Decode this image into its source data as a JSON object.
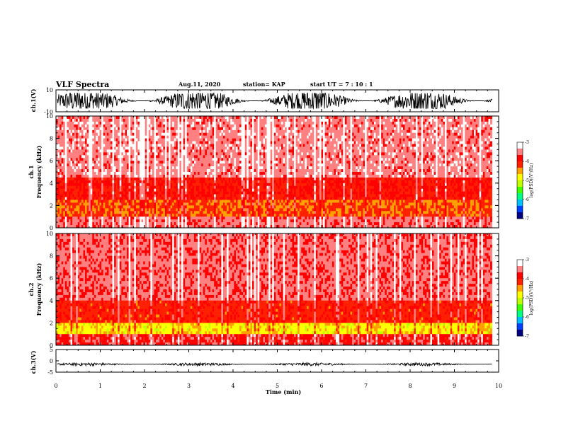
{
  "header": {
    "title": "VLF Spectra",
    "date": "Aug.11, 2020",
    "station": "station= KAP",
    "start": "start UT = 7 : 10 : 1"
  },
  "chart_data": [
    {
      "type": "line",
      "name": "ch1-waveform",
      "ylabel": "ch.1(V)",
      "ylim": [
        -10,
        10
      ],
      "yticklabels": [
        "10",
        "-10"
      ],
      "xlim": [
        0,
        10
      ],
      "color": "#000000",
      "description_level": {
        "center": 0,
        "amplitude_range": [
          -7,
          7
        ]
      }
    },
    {
      "type": "heatmap",
      "name": "ch1-spectrogram",
      "ylabel": "ch.1\nFrequency (kHz)",
      "ylabel_lines": [
        "ch.1",
        "Frequency (kHz)"
      ],
      "ylim": [
        0,
        10
      ],
      "yticks": [
        0,
        2,
        4,
        6,
        8,
        10
      ],
      "xlim": [
        0,
        9.85
      ],
      "colorbar": {
        "label": "log(PSD)(V²/Hz)",
        "range": [
          -7,
          -3
        ],
        "ticks": [
          -3,
          -4,
          -5,
          -6,
          -7
        ]
      },
      "bands": [
        {
          "f_range": [
            0,
            1.0
          ],
          "level": -3.6
        },
        {
          "f_range": [
            1.0,
            2.5
          ],
          "level": -4.3
        },
        {
          "f_range": [
            2.5,
            4.5
          ],
          "level": -4.0
        },
        {
          "f_range": [
            4.5,
            10
          ],
          "level": -3.5
        }
      ]
    },
    {
      "type": "heatmap",
      "name": "ch2-spectrogram",
      "ylabel": "ch.2\nFrequency (kHz)",
      "ylabel_lines": [
        "ch.2",
        "Frequency (kHz)"
      ],
      "ylim": [
        0,
        10
      ],
      "yticks": [
        0,
        2,
        4,
        6,
        8,
        10
      ],
      "xlim": [
        0,
        9.85
      ],
      "colorbar": {
        "label": "log(PSD)(V²/Hz)",
        "range": [
          -7,
          -3
        ],
        "ticks": [
          -3,
          -4,
          -5,
          -6,
          -7
        ]
      },
      "bands": [
        {
          "f_range": [
            0,
            1.0
          ],
          "level": -3.8
        },
        {
          "f_range": [
            1.0,
            2.0
          ],
          "level": -4.8
        },
        {
          "f_range": [
            2.0,
            4.0
          ],
          "level": -4.1
        },
        {
          "f_range": [
            4.0,
            10
          ],
          "level": -3.6
        }
      ]
    },
    {
      "type": "line",
      "name": "ch3-waveform",
      "ylabel": "ch.3(V)",
      "ylim": [
        -5,
        5
      ],
      "yticks": [
        5,
        0,
        -5
      ],
      "xlim": [
        0,
        9.85
      ],
      "xlabel": "Time (min)",
      "xticks": [
        0,
        1,
        2,
        3,
        4,
        5,
        6,
        7,
        8,
        9,
        10
      ],
      "color": "#000000",
      "description_level": {
        "center": -1.5,
        "amplitude_range": [
          -2.2,
          -0.8
        ]
      }
    }
  ],
  "colors": {
    "waveform": "#000000",
    "frame": "#000000",
    "colormap": [
      "#000080",
      "#0040ff",
      "#00c0ff",
      "#00ff80",
      "#40ff00",
      "#c0ff00",
      "#ffff00",
      "#ffa000",
      "#ff2000",
      "#ff0000",
      "#ff8080",
      "#ffffff"
    ]
  }
}
